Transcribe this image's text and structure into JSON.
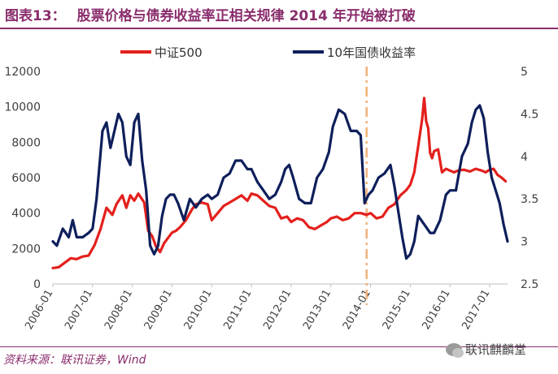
{
  "header": {
    "figure_label": "图表13：",
    "title_text": "股票价格与债券收益率正相关规律 2014 年开始被打破"
  },
  "footer": {
    "source": "资料来源：联讯证券，Wind",
    "watermark": "联讯麒麟堂",
    "watermark_icon": "wechat-icon"
  },
  "colors": {
    "csi500": "#e3201c",
    "bond": "#0e1f5b",
    "marker": "#f2b27a",
    "accent": "#8a2d6c",
    "axis_text": "#404040"
  },
  "chart_data": {
    "type": "line",
    "title": "股票价格与债券收益率正相关规律 2014 年开始被打破",
    "x_tick_labels": [
      "2006-01",
      "2007-01",
      "2008-01",
      "2009-01",
      "2010-01",
      "2011-01",
      "2012-01",
      "2013-01",
      "2014-01",
      "2015-01",
      "2016-01",
      "2017-01"
    ],
    "x_range": [
      2006.0,
      2017.45
    ],
    "y_left": {
      "range": [
        0,
        12000
      ],
      "ticks": [
        0,
        2000,
        4000,
        6000,
        8000,
        10000,
        12000
      ]
    },
    "y_right": {
      "range": [
        2.5,
        5
      ],
      "ticks": [
        "2.5",
        "3",
        "3.5",
        "4",
        "4.5",
        "5"
      ]
    },
    "vertical_marker": {
      "x": 2013.9,
      "style": "dash-dot"
    },
    "legend": [
      "中证500",
      "10年国债收益率"
    ],
    "series": [
      {
        "name": "中证500",
        "axis": "left",
        "x": [
          2006.0,
          2006.15,
          2006.3,
          2006.45,
          2006.6,
          2006.75,
          2006.9,
          2007.05,
          2007.2,
          2007.35,
          2007.5,
          2007.6,
          2007.75,
          2007.85,
          2007.95,
          2008.05,
          2008.15,
          2008.3,
          2008.4,
          2008.5,
          2008.6,
          2008.7,
          2008.8,
          2008.9,
          2009.0,
          2009.1,
          2009.2,
          2009.35,
          2009.5,
          2009.6,
          2009.75,
          2009.9,
          2010.0,
          2010.15,
          2010.3,
          2010.45,
          2010.6,
          2010.75,
          2010.9,
          2011.0,
          2011.15,
          2011.3,
          2011.45,
          2011.6,
          2011.75,
          2011.9,
          2012.0,
          2012.15,
          2012.3,
          2012.45,
          2012.6,
          2012.75,
          2012.9,
          2013.0,
          2013.15,
          2013.3,
          2013.45,
          2013.6,
          2013.75,
          2013.9,
          2014.0,
          2014.15,
          2014.3,
          2014.45,
          2014.6,
          2014.75,
          2014.9,
          2015.0,
          2015.1,
          2015.2,
          2015.3,
          2015.35,
          2015.4,
          2015.45,
          2015.5,
          2015.55,
          2015.6,
          2015.7,
          2015.8,
          2015.9,
          2016.0,
          2016.1,
          2016.2,
          2016.35,
          2016.5,
          2016.65,
          2016.8,
          2016.9,
          2017.0,
          2017.1,
          2017.2,
          2017.3,
          2017.4
        ],
        "values": [
          900,
          950,
          1200,
          1450,
          1400,
          1550,
          1600,
          2200,
          3100,
          4300,
          3900,
          4500,
          5000,
          4300,
          5000,
          4700,
          5100,
          4600,
          3000,
          2700,
          2100,
          1800,
          2300,
          2600,
          2900,
          3000,
          3200,
          3600,
          4200,
          4500,
          4600,
          4500,
          3600,
          4000,
          4400,
          4600,
          4800,
          5000,
          4700,
          5100,
          5000,
          4700,
          4400,
          4300,
          3700,
          3800,
          3500,
          3700,
          3600,
          3200,
          3100,
          3300,
          3500,
          3700,
          3800,
          3600,
          3700,
          4000,
          4000,
          3900,
          4000,
          3700,
          3800,
          4300,
          4500,
          5000,
          5300,
          5600,
          6300,
          7800,
          9300,
          10500,
          9200,
          8800,
          7400,
          7100,
          7500,
          7600,
          6300,
          6500,
          6400,
          6300,
          6400,
          6450,
          6350,
          6500,
          6400,
          6300,
          6450,
          6500,
          6150,
          6000,
          5800
        ]
      },
      {
        "name": "10年国债收益率",
        "axis": "right",
        "x": [
          2006.0,
          2006.1,
          2006.25,
          2006.4,
          2006.5,
          2006.6,
          2006.75,
          2006.9,
          2007.0,
          2007.1,
          2007.25,
          2007.35,
          2007.45,
          2007.55,
          2007.65,
          2007.75,
          2007.85,
          2007.95,
          2008.05,
          2008.15,
          2008.25,
          2008.35,
          2008.45,
          2008.55,
          2008.65,
          2008.75,
          2008.85,
          2008.95,
          2009.05,
          2009.15,
          2009.3,
          2009.45,
          2009.6,
          2009.75,
          2009.9,
          2010.0,
          2010.15,
          2010.3,
          2010.45,
          2010.6,
          2010.75,
          2010.9,
          2011.0,
          2011.15,
          2011.3,
          2011.45,
          2011.6,
          2011.75,
          2011.85,
          2011.95,
          2012.05,
          2012.2,
          2012.35,
          2012.5,
          2012.65,
          2012.8,
          2012.95,
          2013.05,
          2013.2,
          2013.35,
          2013.5,
          2013.65,
          2013.75,
          2013.85,
          2013.95,
          2014.05,
          2014.2,
          2014.35,
          2014.5,
          2014.6,
          2014.7,
          2014.8,
          2014.9,
          2015.0,
          2015.1,
          2015.2,
          2015.35,
          2015.5,
          2015.6,
          2015.75,
          2015.9,
          2016.0,
          2016.15,
          2016.3,
          2016.45,
          2016.55,
          2016.65,
          2016.75,
          2016.85,
          2016.95,
          2017.05,
          2017.15,
          2017.25,
          2017.35,
          2017.45
        ],
        "values": [
          3.0,
          2.95,
          3.15,
          3.05,
          3.25,
          3.05,
          3.05,
          3.1,
          3.15,
          3.5,
          4.3,
          4.4,
          4.1,
          4.3,
          4.5,
          4.4,
          4.0,
          3.9,
          4.4,
          4.5,
          3.95,
          3.6,
          2.95,
          2.85,
          2.95,
          3.3,
          3.5,
          3.55,
          3.55,
          3.45,
          3.25,
          3.5,
          3.4,
          3.5,
          3.55,
          3.5,
          3.55,
          3.75,
          3.8,
          3.95,
          3.95,
          3.85,
          3.85,
          3.7,
          3.6,
          3.5,
          3.55,
          3.7,
          3.85,
          3.9,
          3.75,
          3.5,
          3.45,
          3.45,
          3.75,
          3.85,
          4.05,
          4.35,
          4.55,
          4.5,
          4.3,
          4.3,
          4.25,
          3.45,
          3.55,
          3.6,
          3.75,
          3.8,
          3.9,
          3.65,
          3.35,
          3.05,
          2.8,
          2.85,
          3.0,
          3.3,
          3.2,
          3.1,
          3.1,
          3.25,
          3.55,
          3.6,
          3.6,
          4.0,
          4.15,
          4.4,
          4.55,
          4.6,
          4.45,
          4.05,
          3.75,
          3.6,
          3.45,
          3.2,
          3.0
        ]
      }
    ]
  }
}
